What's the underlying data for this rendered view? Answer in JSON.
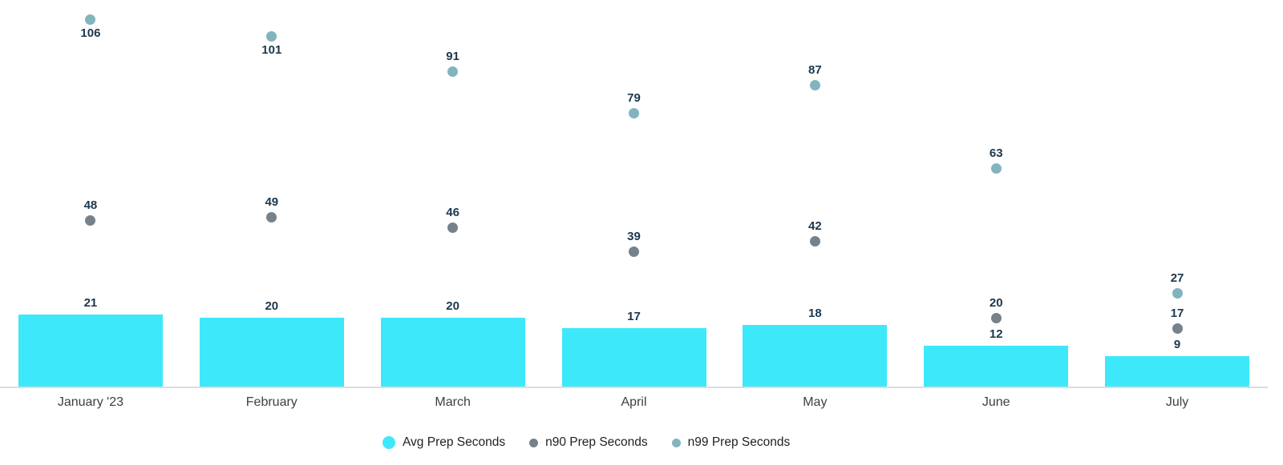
{
  "chart_data": {
    "type": "bar",
    "title": "",
    "categories": [
      "January '23",
      "February",
      "March",
      "April",
      "May",
      "June",
      "July"
    ],
    "series": [
      {
        "name": "Avg Prep Seconds",
        "render": "bar",
        "color": "#3DE8FA",
        "values": [
          21,
          20,
          20,
          17,
          18,
          12,
          9
        ]
      },
      {
        "name": "n90 Prep Seconds",
        "render": "point",
        "color": "#75828C",
        "values": [
          48,
          49,
          46,
          39,
          42,
          20,
          17
        ]
      },
      {
        "name": "n99 Prep Seconds",
        "render": "point",
        "color": "#82B4BE",
        "values": [
          106,
          101,
          91,
          79,
          87,
          63,
          27
        ]
      }
    ],
    "ylim": [
      0,
      106
    ],
    "grid": false,
    "legend_position": "bottom",
    "data_labels_visible": true,
    "xlabel": "",
    "ylabel": ""
  },
  "colors": {
    "background": "#FFFFFF",
    "data_label": "#1B384E",
    "category_label": "#3C4043",
    "axis_line": "#DADCE3",
    "legend_text": "#212121"
  }
}
